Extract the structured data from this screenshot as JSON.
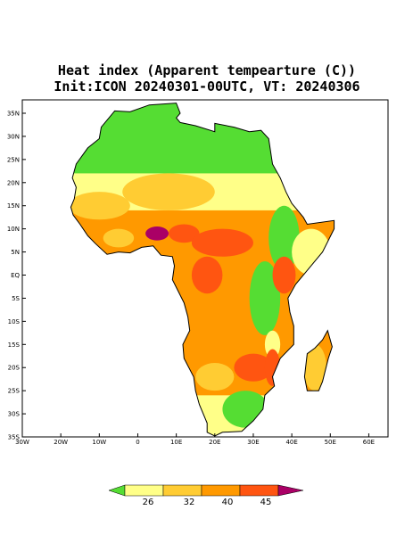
{
  "header": {
    "title_lines": [
      "Heat index (Apparent tempearture (C))",
      "Init:ICON 20240301-00UTC, VT: 20240306"
    ]
  },
  "map": {
    "lat_labels": [
      "35N",
      "30N",
      "25N",
      "20N",
      "15N",
      "10N",
      "5N",
      "EQ",
      "5S",
      "10S",
      "15S",
      "20S",
      "25S",
      "30S",
      "35S"
    ],
    "lon_labels": [
      "30W",
      "20W",
      "10W",
      "0",
      "10E",
      "20E",
      "30E",
      "40E",
      "50E",
      "60E"
    ]
  },
  "legend": {
    "levels": [
      26,
      32,
      40,
      45
    ]
  }
}
